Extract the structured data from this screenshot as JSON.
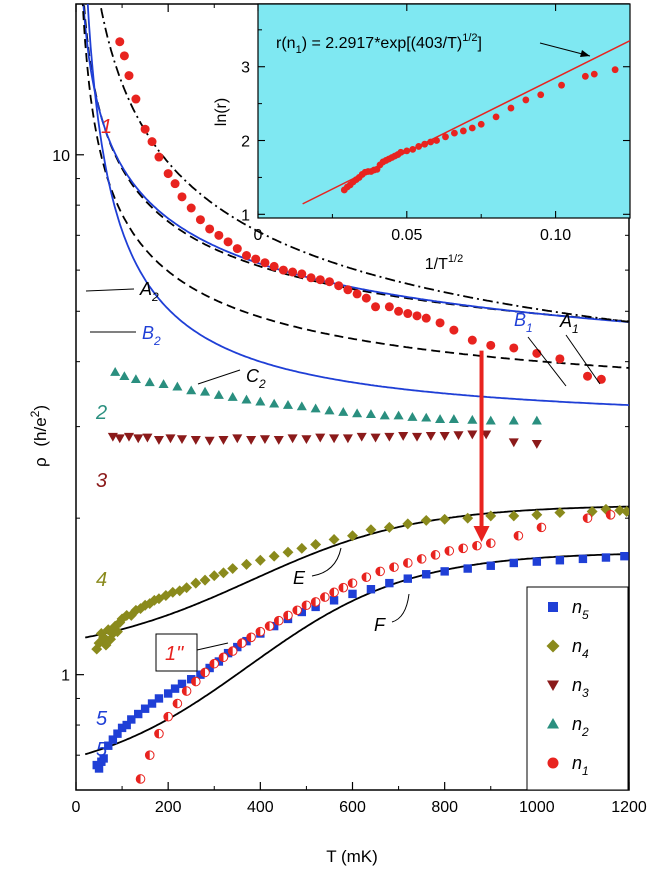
{
  "chart_data": [
    {
      "type": "scatter",
      "xlabel": "T (mK)",
      "ylabel_main": "ρ",
      "ylabel_unit": "(h/e",
      "ylabel_sup": "2",
      "ylabel_close": ")",
      "xlim": [
        0,
        1200
      ],
      "ylim": [
        0.6,
        19.5
      ],
      "yscale": "log",
      "x_ticks": [
        0,
        200,
        400,
        600,
        800,
        1000,
        1200
      ],
      "x_tick_labels": [
        "0",
        "200",
        "400",
        "600",
        "800",
        "1000",
        "1200"
      ],
      "y_ticks": [
        1,
        10
      ],
      "y_tick_labels": [
        "1",
        "10"
      ],
      "legend": {
        "position": "bottom-right",
        "entries": [
          {
            "label": "n",
            "sub": "5",
            "marker": "square",
            "color": "#1f3fd6"
          },
          {
            "label": "n",
            "sub": "4",
            "marker": "diamond",
            "color": "#8a8a1c"
          },
          {
            "label": "n",
            "sub": "3",
            "marker": "triangle-down",
            "color": "#8b1a1a"
          },
          {
            "label": "n",
            "sub": "2",
            "marker": "triangle-up",
            "color": "#2a8f7f"
          },
          {
            "label": "n",
            "sub": "1",
            "marker": "circle",
            "color": "#e8231f"
          }
        ]
      },
      "series": [
        {
          "key": "n1",
          "label": "1",
          "marker": "circle",
          "color": "#e8231f",
          "x": [
            95,
            105,
            115,
            130,
            150,
            165,
            180,
            200,
            215,
            230,
            250,
            270,
            290,
            310,
            330,
            350,
            370,
            390,
            410,
            430,
            450,
            470,
            490,
            510,
            530,
            550,
            570,
            590,
            610,
            630,
            650,
            680,
            700,
            720,
            740,
            760,
            790,
            820,
            860,
            900,
            950,
            1000,
            1050,
            1110,
            1140
          ],
          "y": [
            16.5,
            15.5,
            14.2,
            12.8,
            11.2,
            10.6,
            9.9,
            9.2,
            8.8,
            8.3,
            7.9,
            7.5,
            7.2,
            7.0,
            6.8,
            6.6,
            6.4,
            6.3,
            6.2,
            6.1,
            6.0,
            5.95,
            5.9,
            5.8,
            5.75,
            5.7,
            5.6,
            5.5,
            5.4,
            5.3,
            5.1,
            5.1,
            5.0,
            4.95,
            4.9,
            4.85,
            4.75,
            4.6,
            4.4,
            4.3,
            4.25,
            4.15,
            4.05,
            3.75,
            3.7
          ]
        },
        {
          "key": "n2",
          "label": "2",
          "marker": "triangle-up",
          "color": "#2a8f7f",
          "x": [
            85,
            105,
            130,
            160,
            190,
            220,
            250,
            280,
            310,
            340,
            370,
            400,
            430,
            460,
            490,
            520,
            550,
            580,
            610,
            640,
            670,
            700,
            730,
            760,
            790,
            820,
            860,
            900,
            950,
            1000
          ],
          "y": [
            3.82,
            3.75,
            3.7,
            3.65,
            3.62,
            3.58,
            3.52,
            3.5,
            3.45,
            3.42,
            3.38,
            3.35,
            3.32,
            3.3,
            3.28,
            3.25,
            3.22,
            3.2,
            3.18,
            3.17,
            3.15,
            3.15,
            3.13,
            3.12,
            3.1,
            3.1,
            3.09,
            3.08,
            3.08,
            3.08
          ]
        },
        {
          "key": "n3",
          "label": "3",
          "marker": "triangle-down",
          "color": "#8b1a1a",
          "x": [
            80,
            95,
            115,
            135,
            155,
            180,
            205,
            230,
            260,
            290,
            320,
            350,
            380,
            410,
            440,
            470,
            500,
            530,
            560,
            590,
            620,
            650,
            680,
            710,
            740,
            770,
            800,
            830,
            860,
            890,
            950,
            1000
          ],
          "y": [
            2.87,
            2.85,
            2.87,
            2.85,
            2.86,
            2.83,
            2.85,
            2.84,
            2.83,
            2.82,
            2.83,
            2.85,
            2.83,
            2.84,
            2.83,
            2.85,
            2.84,
            2.86,
            2.85,
            2.85,
            2.87,
            2.86,
            2.87,
            2.88,
            2.87,
            2.88,
            2.88,
            2.89,
            2.9,
            2.9,
            2.8,
            2.78
          ]
        },
        {
          "key": "n4",
          "label": "4",
          "marker": "diamond",
          "color": "#8a8a1c",
          "x": [
            45,
            50,
            55,
            60,
            65,
            70,
            75,
            80,
            85,
            90,
            95,
            100,
            110,
            120,
            130,
            140,
            150,
            160,
            170,
            180,
            195,
            210,
            225,
            240,
            260,
            280,
            300,
            320,
            340,
            370,
            400,
            430,
            460,
            490,
            520,
            560,
            600,
            640,
            680,
            720,
            760,
            800,
            850,
            900,
            950,
            1000,
            1050,
            1120,
            1150,
            1180,
            1195
          ],
          "y": [
            1.12,
            1.15,
            1.2,
            1.18,
            1.14,
            1.22,
            1.17,
            1.2,
            1.24,
            1.21,
            1.26,
            1.28,
            1.3,
            1.3,
            1.33,
            1.34,
            1.36,
            1.37,
            1.39,
            1.4,
            1.42,
            1.44,
            1.45,
            1.47,
            1.5,
            1.52,
            1.55,
            1.57,
            1.6,
            1.63,
            1.66,
            1.69,
            1.72,
            1.75,
            1.78,
            1.82,
            1.85,
            1.9,
            1.92,
            1.95,
            1.98,
            1.99,
            2.0,
            2.02,
            2.02,
            2.03,
            2.05,
            2.06,
            2.08,
            2.07,
            2.06
          ]
        },
        {
          "key": "n5",
          "label": "5",
          "marker": "square",
          "color": "#1f3fd6",
          "x": [
            45,
            50,
            55,
            60,
            70,
            80,
            90,
            100,
            110,
            120,
            135,
            150,
            165,
            180,
            200,
            215,
            230,
            250,
            270,
            290,
            310,
            330,
            350,
            370,
            400,
            430,
            460,
            490,
            520,
            560,
            600,
            640,
            680,
            720,
            760,
            800,
            850,
            900,
            950,
            1000,
            1050,
            1100,
            1150,
            1190
          ],
          "y": [
            0.67,
            0.66,
            0.68,
            0.69,
            0.73,
            0.75,
            0.77,
            0.79,
            0.8,
            0.82,
            0.84,
            0.86,
            0.88,
            0.9,
            0.92,
            0.94,
            0.96,
            0.98,
            1.0,
            1.03,
            1.06,
            1.1,
            1.13,
            1.16,
            1.2,
            1.24,
            1.28,
            1.32,
            1.35,
            1.39,
            1.43,
            1.46,
            1.5,
            1.53,
            1.56,
            1.58,
            1.6,
            1.62,
            1.64,
            1.65,
            1.66,
            1.67,
            1.68,
            1.69
          ]
        },
        {
          "key": "n1pp",
          "label": "1\"",
          "marker": "half-circle",
          "color": "#e8231f",
          "x": [
            120,
            140,
            160,
            180,
            200,
            220,
            240,
            260,
            280,
            300,
            320,
            340,
            360,
            380,
            400,
            420,
            440,
            460,
            480,
            500,
            520,
            540,
            560,
            580,
            600,
            630,
            660,
            690,
            720,
            750,
            780,
            810,
            840,
            870,
            900,
            960,
            1010,
            1110,
            1160
          ],
          "y": [
            0.58,
            0.63,
            0.7,
            0.77,
            0.83,
            0.88,
            0.93,
            0.97,
            1.01,
            1.05,
            1.08,
            1.11,
            1.15,
            1.18,
            1.21,
            1.24,
            1.27,
            1.3,
            1.33,
            1.36,
            1.38,
            1.41,
            1.44,
            1.47,
            1.5,
            1.54,
            1.58,
            1.61,
            1.64,
            1.67,
            1.7,
            1.73,
            1.75,
            1.77,
            1.79,
            1.85,
            1.92,
            2.0,
            2.03
          ]
        }
      ],
      "curves": [
        {
          "key": "A1",
          "style": "dash",
          "color": "#000000",
          "rho0": 3.2,
          "a": 1.75,
          "p": 0.55
        },
        {
          "key": "B1",
          "style": "solid",
          "color": "#1f3fd6",
          "rho0": 2.85,
          "a": 2.1,
          "p": 0.5
        },
        {
          "key": "A2",
          "style": "dash",
          "color": "#000000",
          "rho0": 2.95,
          "a": 1.06,
          "p": 0.65
        },
        {
          "key": "B2",
          "style": "solid",
          "color": "#1f3fd6",
          "rho0": 2.95,
          "a": 0.42,
          "p": 1.0
        },
        {
          "key": "C2",
          "style": "dashdot",
          "color": "#000000",
          "rho0": 2.55,
          "a": 2.5,
          "p": 0.65
        },
        {
          "key": "E",
          "style": "solid",
          "color": "#000000",
          "low": 1.17,
          "high": 2.12,
          "t0": 440,
          "w": 180
        },
        {
          "key": "F",
          "style": "solid",
          "color": "#000000",
          "low": 0.695,
          "high": 1.72,
          "t0": 460,
          "w": 170
        }
      ],
      "curve_labels": [
        {
          "text": "A",
          "sub": "1",
          "color": "#000000"
        },
        {
          "text": "B",
          "sub": "1",
          "color": "#1f3fd6"
        },
        {
          "text": "A",
          "sub": "2",
          "color": "#000000"
        },
        {
          "text": "B",
          "sub": "2",
          "color": "#1f3fd6"
        },
        {
          "text": "C",
          "sub": "2",
          "color": "#000000"
        },
        {
          "text": "E",
          "sub": "",
          "color": "#000000"
        },
        {
          "text": "F",
          "sub": "",
          "color": "#000000"
        }
      ],
      "series_labels": [
        {
          "text": "1",
          "color": "#e8231f"
        },
        {
          "text": "2",
          "color": "#2a8f7f"
        },
        {
          "text": "3",
          "color": "#8b1a1a"
        },
        {
          "text": "4",
          "color": "#8a8a1c"
        },
        {
          "text": "5",
          "color": "#1f3fd6"
        },
        {
          "text": "5",
          "color": "#1f3fd6"
        },
        {
          "text": "1\"",
          "color": "#e8231f"
        }
      ],
      "arrow": {
        "color": "#e8231f",
        "x": 880,
        "from_y": 4.2,
        "to_y": 1.8
      }
    },
    {
      "type": "scatter",
      "inset": true,
      "background": "#7fe8f2",
      "xlabel": "1/T",
      "xlabel_sup": "1/2",
      "ylabel": "ln(r)",
      "xlim": [
        0,
        0.125
      ],
      "ylim": [
        0.95,
        3.85
      ],
      "x_ticks": [
        0,
        0.05,
        0.1
      ],
      "x_tick_labels": [
        "0",
        "0.05",
        "0.10"
      ],
      "y_ticks": [
        1,
        2,
        3
      ],
      "y_tick_labels": [
        "1",
        "2",
        "3"
      ],
      "annotation": {
        "pre": "r(n",
        "sub": "1",
        "mid": ") = 2.2917*exp[(403/T)",
        "sup": "1/2",
        "post": "]"
      },
      "fit_line": {
        "color": "#e8231f",
        "slope": 20.1,
        "intercept": 0.84,
        "x_range": [
          0.015,
          0.125
        ]
      },
      "points": {
        "color": "#e8231f",
        "x": [
          0.029,
          0.03,
          0.031,
          0.032,
          0.033,
          0.034,
          0.035,
          0.036,
          0.037,
          0.038,
          0.039,
          0.04,
          0.041,
          0.042,
          0.043,
          0.044,
          0.045,
          0.046,
          0.047,
          0.048,
          0.05,
          0.052,
          0.054,
          0.056,
          0.058,
          0.06,
          0.063,
          0.066,
          0.069,
          0.072,
          0.075,
          0.08,
          0.085,
          0.09,
          0.095,
          0.102,
          0.11,
          0.113,
          0.12
        ],
        "y": [
          1.33,
          1.37,
          1.4,
          1.44,
          1.47,
          1.5,
          1.54,
          1.57,
          1.58,
          1.58,
          1.6,
          1.61,
          1.67,
          1.71,
          1.73,
          1.75,
          1.77,
          1.79,
          1.81,
          1.84,
          1.86,
          1.88,
          1.92,
          1.95,
          1.98,
          2.0,
          2.05,
          2.1,
          2.13,
          2.17,
          2.22,
          2.32,
          2.44,
          2.55,
          2.62,
          2.75,
          2.87,
          2.9,
          2.96
        ]
      }
    }
  ]
}
